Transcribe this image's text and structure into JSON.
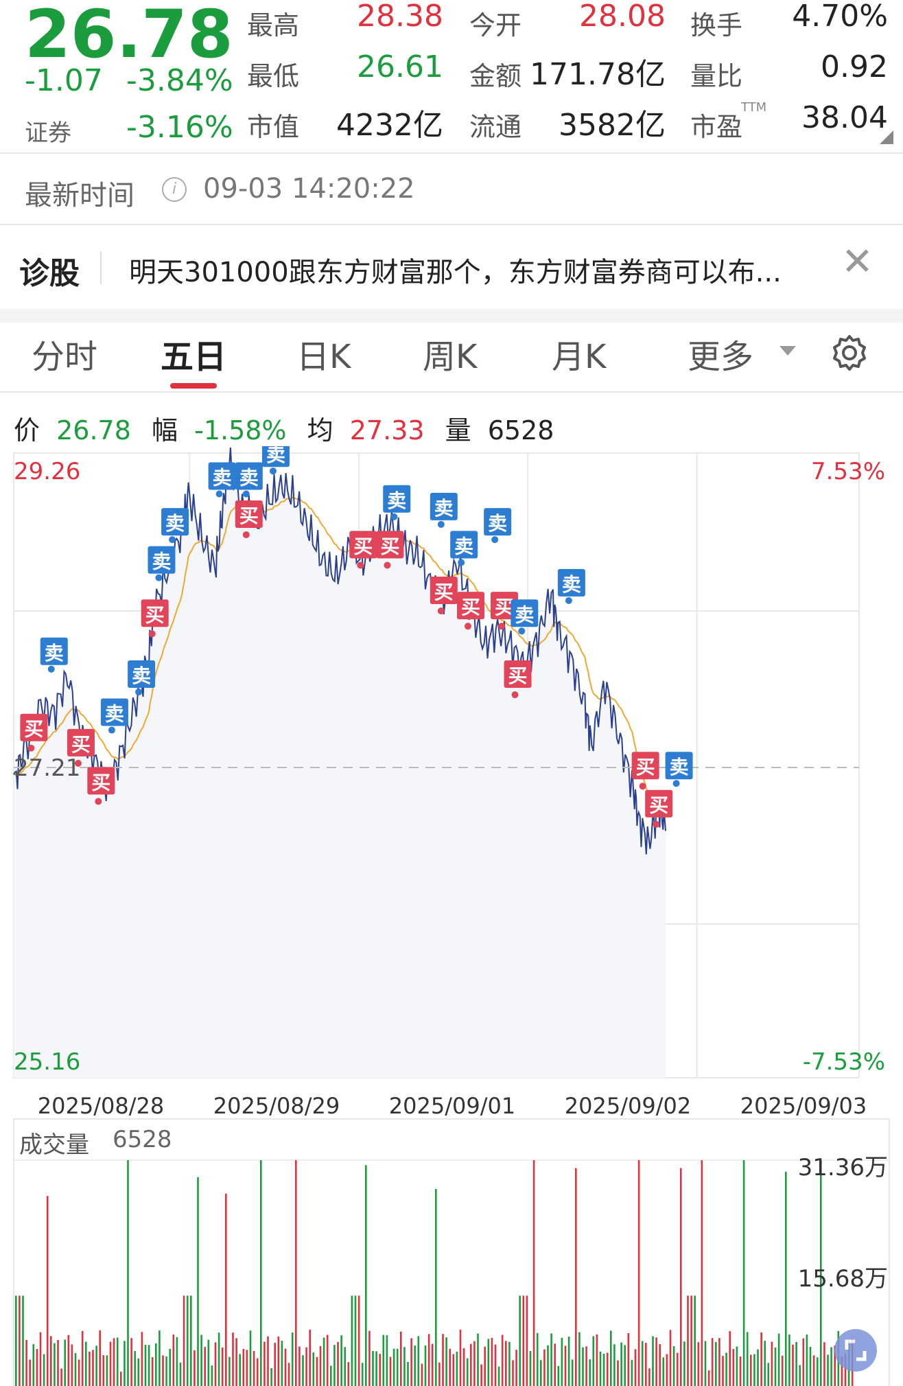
{
  "quote": {
    "price": "26.78",
    "change": "-1.07",
    "change_pct": "-3.84%",
    "sector_label": "证券",
    "sector_pct": "-3.16%"
  },
  "stats": [
    {
      "label": "最高",
      "value": "28.38",
      "color": "red"
    },
    {
      "label": "今开",
      "value": "28.08",
      "color": "red"
    },
    {
      "label": "换手",
      "value": "4.70%",
      "color": "dark"
    },
    {
      "label": "最低",
      "value": "26.61",
      "color": "green"
    },
    {
      "label": "金额",
      "value": "171.78亿",
      "color": "dark"
    },
    {
      "label": "量比",
      "value": "0.92",
      "color": "dark"
    },
    {
      "label": "市值",
      "value": "4232亿",
      "color": "dark"
    },
    {
      "label": "流通",
      "value": "3582亿",
      "color": "dark"
    },
    {
      "label": "市盈",
      "value": "38.04",
      "color": "dark",
      "sup": "TTM"
    }
  ],
  "update": {
    "label": "最新时间",
    "time": "09-03 14:20:22"
  },
  "diagnose": {
    "title": "诊股",
    "text": "明天301000跟东方财富那个，东方财富券商可以布..."
  },
  "tabs": [
    "分时",
    "五日",
    "日K",
    "周K",
    "月K",
    "更多"
  ],
  "legend": {
    "price_label": "价",
    "price": "26.78",
    "range_label": "幅",
    "range": "-1.58%",
    "avg_label": "均",
    "avg": "27.33",
    "vol_label": "量",
    "vol": "6528"
  },
  "axis": {
    "top_price": "29.26",
    "top_pct": "7.53%",
    "mid_price": "27.21",
    "bottom_price": "25.16",
    "bottom_pct": "-7.53%",
    "dates": [
      "2025/08/28",
      "2025/08/29",
      "2025/09/01",
      "2025/09/02",
      "2025/09/03"
    ]
  },
  "volume": {
    "title": "成交量",
    "value": "6528",
    "max": "31.36万",
    "mid": "15.68万"
  },
  "markers": {
    "buy": "买",
    "sell": "卖"
  },
  "colors": {
    "up": "#e0313e",
    "down": "#1b9c3d",
    "line": "#2a3f8f",
    "avg": "#f0a830",
    "sell_badge": "#2d7dd2",
    "buy_badge": "#e0455a"
  },
  "chart_data": {
    "type": "line",
    "title": "",
    "x": [
      "2025/08/28",
      "2025/08/29",
      "2025/09/01",
      "2025/09/02",
      "2025/09/03"
    ],
    "ylim": [
      25.16,
      29.26
    ],
    "prev_close": 27.21,
    "series": [
      {
        "name": "价",
        "values": [
          27.1,
          28.9,
          28.6,
          28.1,
          26.78
        ]
      },
      {
        "name": "均",
        "values": [
          27.3,
          28.3,
          28.4,
          28.0,
          27.33
        ]
      }
    ]
  }
}
